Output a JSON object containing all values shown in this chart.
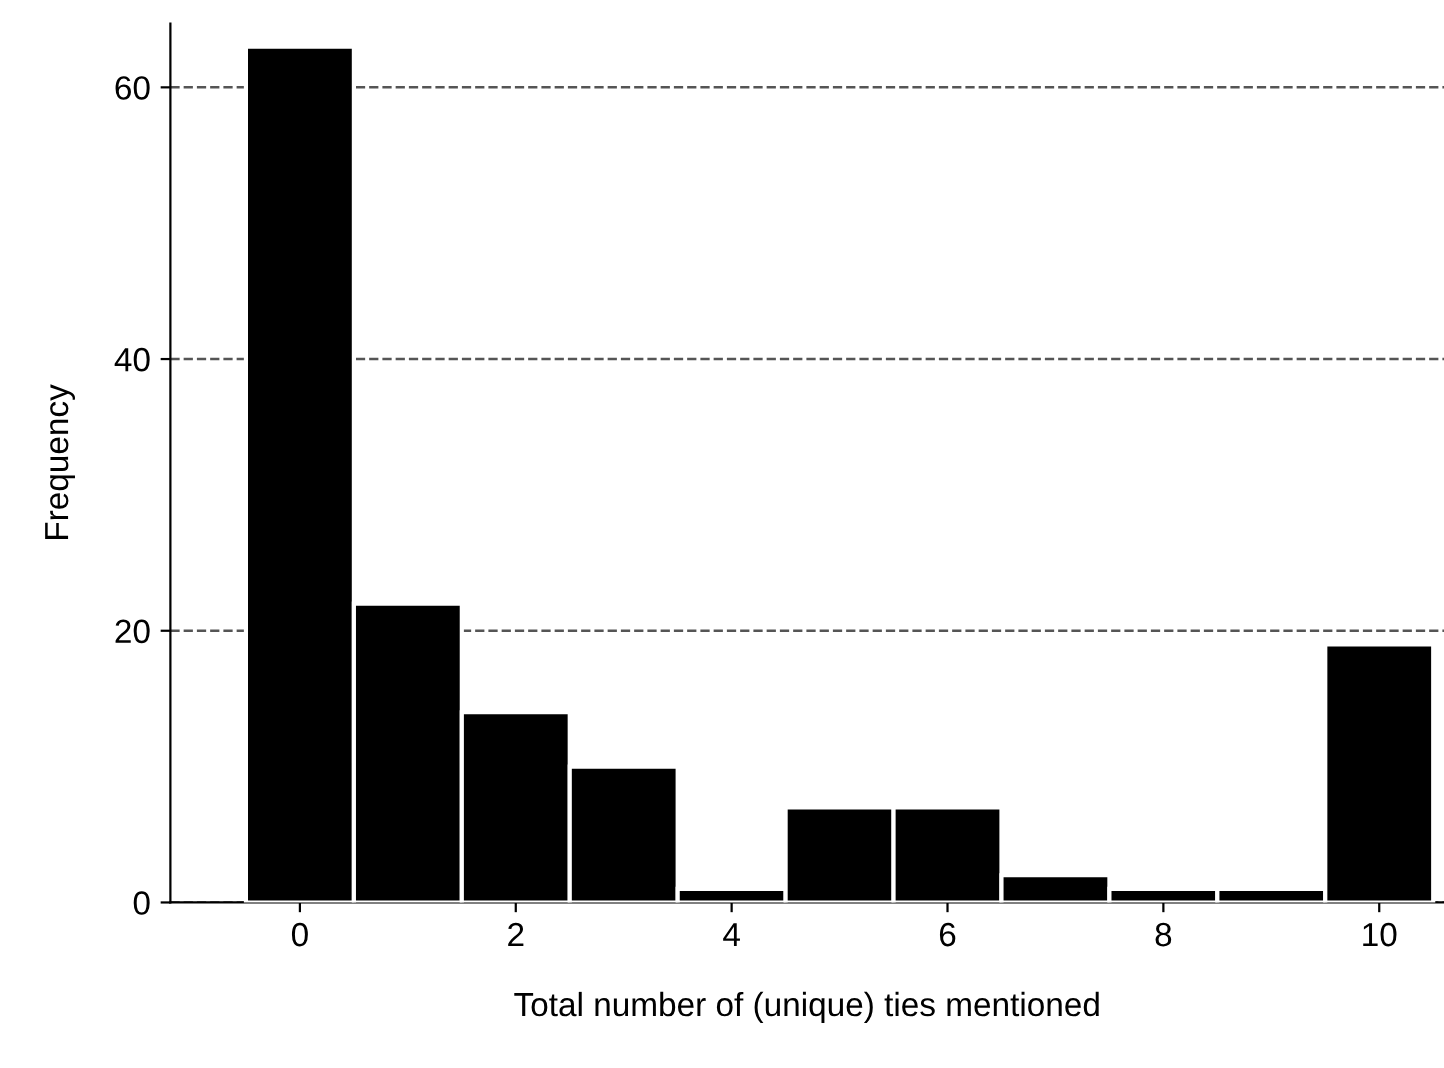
{
  "chart_data": {
    "type": "histogram",
    "xlabel": "Total number of (unique) ties mentioned",
    "ylabel": "Frequency",
    "bins": [
      -0.5,
      0.5,
      1.5,
      2.5,
      3.5,
      4.5,
      5.5,
      6.5,
      7.5,
      8.5,
      9.5,
      10.5
    ],
    "values": [
      63,
      22,
      14,
      10,
      1,
      7,
      7,
      2,
      1,
      1,
      19
    ],
    "color": "#000000",
    "xlim": [
      -1.2,
      10.6
    ],
    "ylim": [
      0,
      64.7
    ],
    "xticks": [
      0,
      2,
      4,
      6,
      8,
      10
    ],
    "yticks": [
      0,
      20,
      40,
      60
    ],
    "grid": "y",
    "line_style": "dashed"
  }
}
